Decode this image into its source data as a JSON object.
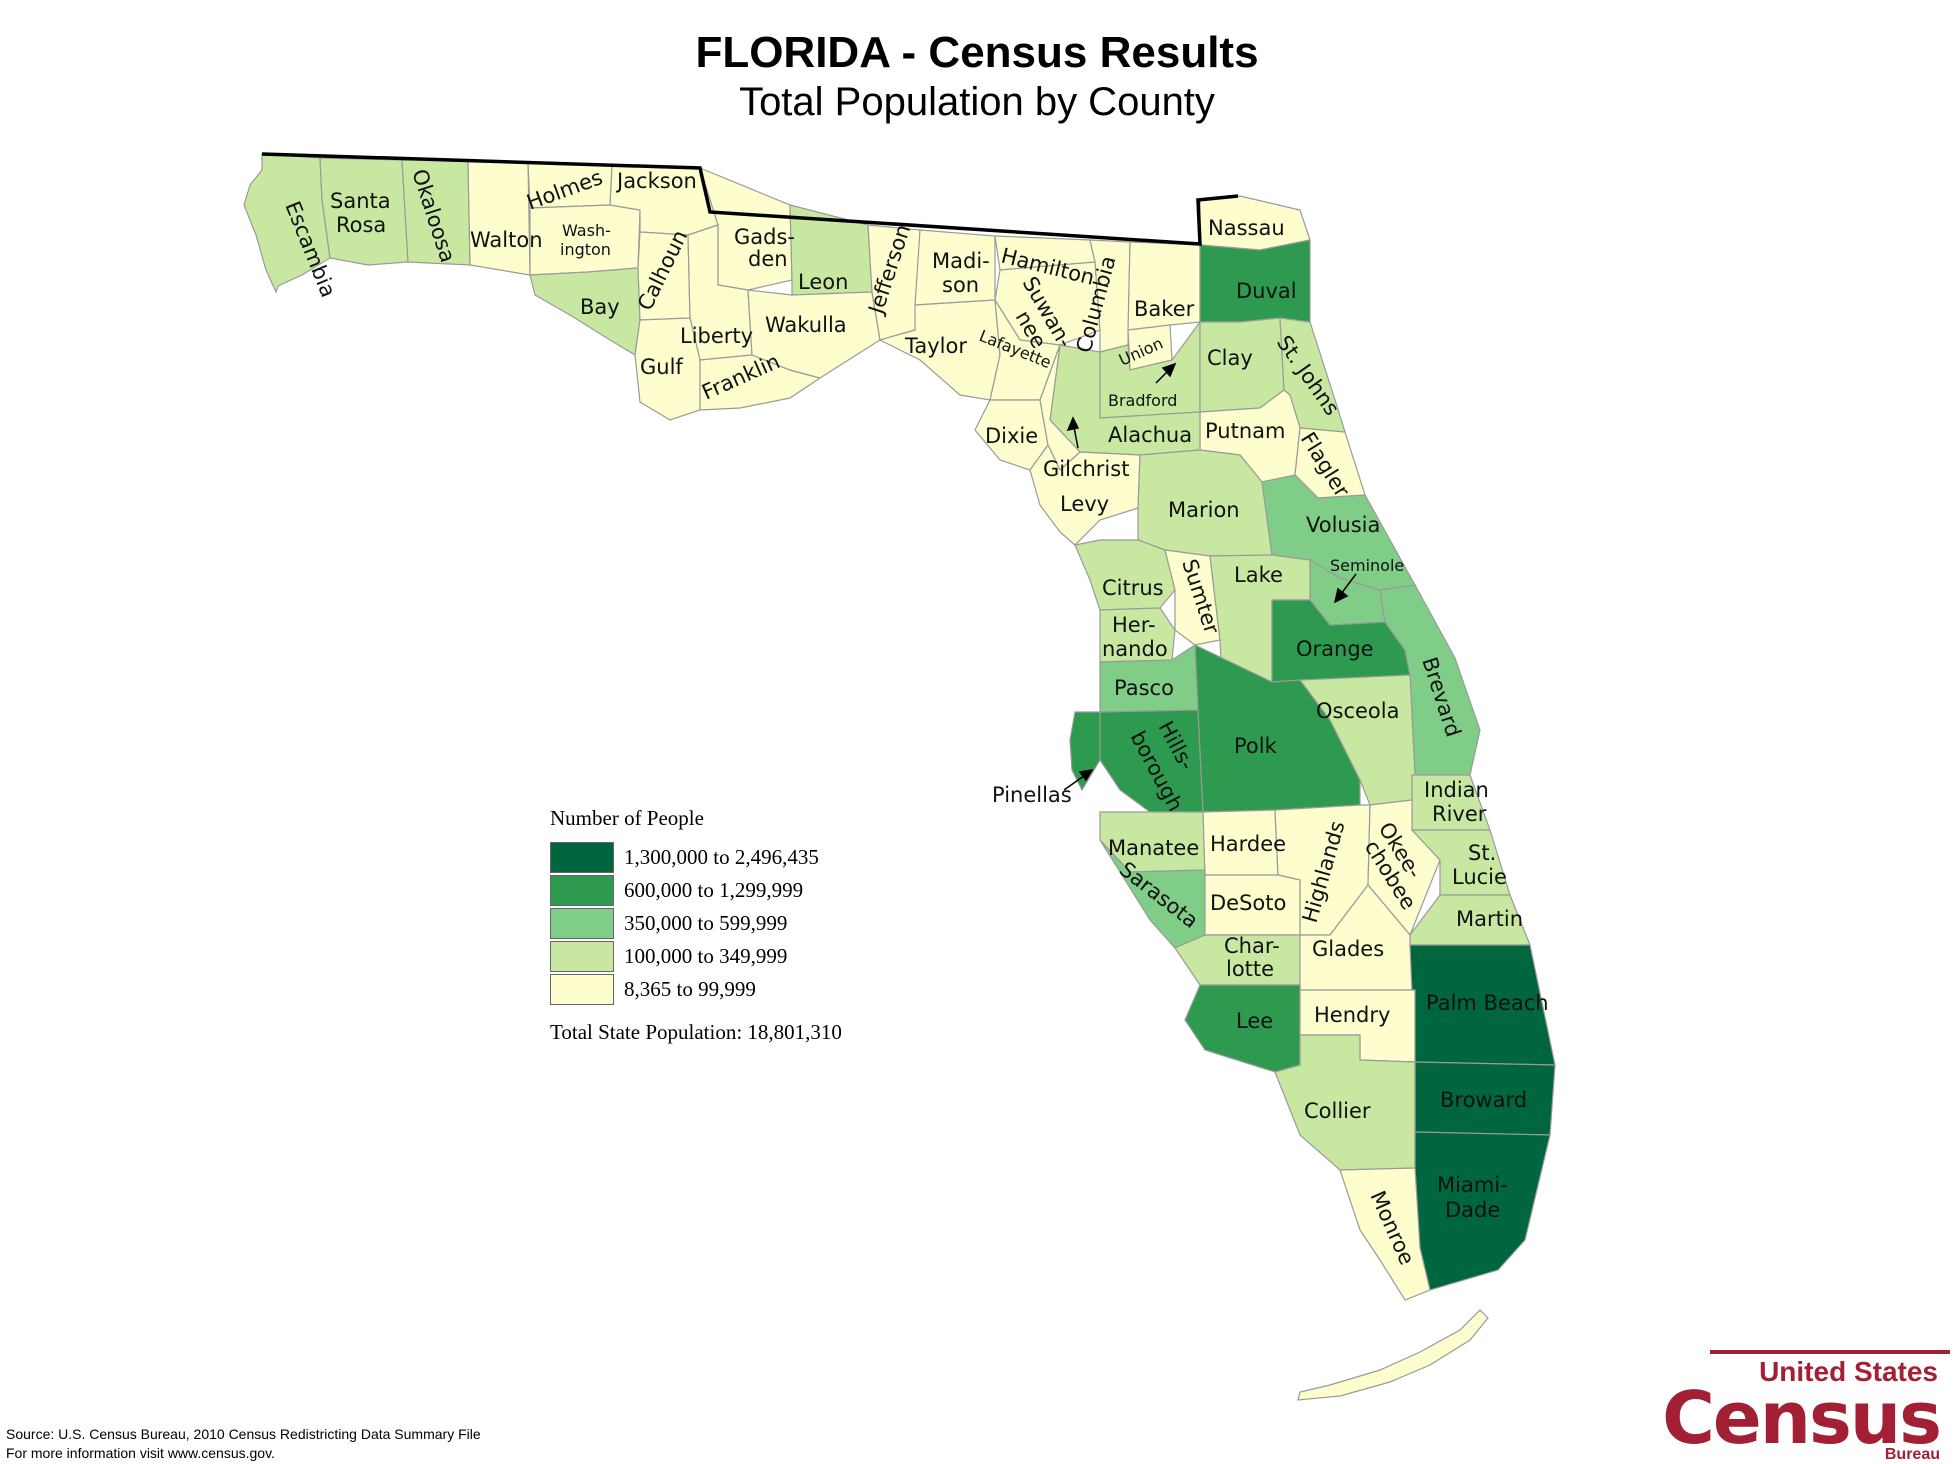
{
  "title": "FLORIDA - Census Results",
  "subtitle": "Total Population by County",
  "legend": {
    "title": "Number of People",
    "classes": [
      {
        "label": "1,300,000 to 2,496,435",
        "color": "#00663d"
      },
      {
        "label": "600,000 to 1,299,999",
        "color": "#2e9a4f"
      },
      {
        "label": "350,000 to 599,999",
        "color": "#7fcd87"
      },
      {
        "label": "100,000 to 349,999",
        "color": "#c8e8a2"
      },
      {
        "label": "8,365 to 99,999",
        "color": "#fdfdce"
      }
    ],
    "total": "Total State Population:  18,801,310"
  },
  "counties": [
    {
      "name": "Escambia",
      "class": 3
    },
    {
      "name": "Santa Rosa",
      "class": 3
    },
    {
      "name": "Okaloosa",
      "class": 3
    },
    {
      "name": "Walton",
      "class": 4
    },
    {
      "name": "Holmes",
      "class": 4
    },
    {
      "name": "Washington",
      "class": 4
    },
    {
      "name": "Jackson",
      "class": 4
    },
    {
      "name": "Bay",
      "class": 3
    },
    {
      "name": "Calhoun",
      "class": 4
    },
    {
      "name": "Gadsden",
      "class": 4
    },
    {
      "name": "Leon",
      "class": 3
    },
    {
      "name": "Liberty",
      "class": 4
    },
    {
      "name": "Gulf",
      "class": 4
    },
    {
      "name": "Franklin",
      "class": 4
    },
    {
      "name": "Wakulla",
      "class": 4
    },
    {
      "name": "Jefferson",
      "class": 4
    },
    {
      "name": "Madison",
      "class": 4
    },
    {
      "name": "Taylor",
      "class": 4
    },
    {
      "name": "Hamilton",
      "class": 4
    },
    {
      "name": "Suwannee",
      "class": 4
    },
    {
      "name": "Lafayette",
      "class": 4
    },
    {
      "name": "Columbia",
      "class": 4
    },
    {
      "name": "Baker",
      "class": 4
    },
    {
      "name": "Union",
      "class": 4
    },
    {
      "name": "Bradford",
      "class": 3
    },
    {
      "name": "Nassau",
      "class": 4
    },
    {
      "name": "Duval",
      "class": 1
    },
    {
      "name": "Clay",
      "class": 3
    },
    {
      "name": "St. Johns",
      "class": 3
    },
    {
      "name": "Putnam",
      "class": 4
    },
    {
      "name": "Flagler",
      "class": 4
    },
    {
      "name": "Alachua",
      "class": 3
    },
    {
      "name": "Dixie",
      "class": 4
    },
    {
      "name": "Gilchrist",
      "class": 4
    },
    {
      "name": "Levy",
      "class": 4
    },
    {
      "name": "Marion",
      "class": 3
    },
    {
      "name": "Volusia",
      "class": 2
    },
    {
      "name": "Seminole",
      "class": 2
    },
    {
      "name": "Citrus",
      "class": 3
    },
    {
      "name": "Sumter",
      "class": 4
    },
    {
      "name": "Lake",
      "class": 3
    },
    {
      "name": "Hernando",
      "class": 3
    },
    {
      "name": "Orange",
      "class": 1
    },
    {
      "name": "Brevard",
      "class": 2
    },
    {
      "name": "Pasco",
      "class": 2
    },
    {
      "name": "Hillsborough",
      "class": 1
    },
    {
      "name": "Pinellas",
      "class": 1
    },
    {
      "name": "Polk",
      "class": 1
    },
    {
      "name": "Osceola",
      "class": 3
    },
    {
      "name": "Indian River",
      "class": 3
    },
    {
      "name": "Manatee",
      "class": 3
    },
    {
      "name": "Hardee",
      "class": 4
    },
    {
      "name": "Highlands",
      "class": 4
    },
    {
      "name": "Okeechobee",
      "class": 4
    },
    {
      "name": "St. Lucie",
      "class": 3
    },
    {
      "name": "Sarasota",
      "class": 2
    },
    {
      "name": "DeSoto",
      "class": 4
    },
    {
      "name": "Martin",
      "class": 3
    },
    {
      "name": "Charlotte",
      "class": 3
    },
    {
      "name": "Glades",
      "class": 4
    },
    {
      "name": "Palm Beach",
      "class": 0
    },
    {
      "name": "Lee",
      "class": 1
    },
    {
      "name": "Hendry",
      "class": 4
    },
    {
      "name": "Broward",
      "class": 0
    },
    {
      "name": "Collier",
      "class": 3
    },
    {
      "name": "Miami-Dade",
      "class": 0
    },
    {
      "name": "Monroe",
      "class": 4
    }
  ],
  "labels": {
    "escambia": "Escambia",
    "santa_rosa_1": "Santa",
    "santa_rosa_2": "Rosa",
    "okaloosa": "Okaloosa",
    "walton": "Walton",
    "holmes": "Holmes",
    "washington_1": "Wash-",
    "washington_2": "ington",
    "jackson": "Jackson",
    "bay": "Bay",
    "calhoun": "Calhoun",
    "gadsden_1": "Gads-",
    "gadsden_2": "den",
    "leon": "Leon",
    "liberty": "Liberty",
    "gulf": "Gulf",
    "franklin": "Franklin",
    "wakulla": "Wakulla",
    "jefferson": "Jefferson",
    "madison_1": "Madi-",
    "madison_2": "son",
    "taylor": "Taylor",
    "hamilton": "Hamilton",
    "suwannee_1": "Suwan-",
    "suwannee_2": "nee",
    "lafayette": "Lafayette",
    "columbia": "Columbia",
    "baker": "Baker",
    "union": "Union",
    "bradford": "Bradford",
    "nassau": "Nassau",
    "duval": "Duval",
    "clay": "Clay",
    "st_johns": "St. Johns",
    "putnam": "Putnam",
    "flagler": "Flagler",
    "alachua": "Alachua",
    "dixie": "Dixie",
    "gilchrist": "Gilchrist",
    "levy": "Levy",
    "marion": "Marion",
    "volusia": "Volusia",
    "seminole": "Seminole",
    "citrus": "Citrus",
    "sumter": "Sumter",
    "lake": "Lake",
    "hernando_1": "Her-",
    "hernando_2": "nando",
    "orange": "Orange",
    "brevard": "Brevard",
    "pasco": "Pasco",
    "hillsborough_1": "Hills-",
    "hillsborough_2": "borough",
    "pinellas": "Pinellas",
    "polk": "Polk",
    "osceola": "Osceola",
    "indian_river_1": "Indian",
    "indian_river_2": "River",
    "manatee": "Manatee",
    "hardee": "Hardee",
    "highlands": "Highlands",
    "okeechobee_1": "Okee-",
    "okeechobee_2": "chobee",
    "st_lucie_1": "St.",
    "st_lucie_2": "Lucie",
    "sarasota": "Sarasota",
    "desoto": "DeSoto",
    "martin": "Martin",
    "charlotte_1": "Char-",
    "charlotte_2": "lotte",
    "glades": "Glades",
    "palm_beach": "Palm Beach",
    "lee": "Lee",
    "hendry": "Hendry",
    "broward": "Broward",
    "collier": "Collier",
    "miami_dade_1": "Miami-",
    "miami_dade_2": "Dade",
    "monroe": "Monroe"
  },
  "source_line_1": "Source:  U.S. Census Bureau, 2010 Census Redistricting Data Summary File",
  "source_line_2": "For more information visit www.census.gov.",
  "logo": {
    "line1": "United States",
    "line2": "Census",
    "line3": "Bureau"
  }
}
